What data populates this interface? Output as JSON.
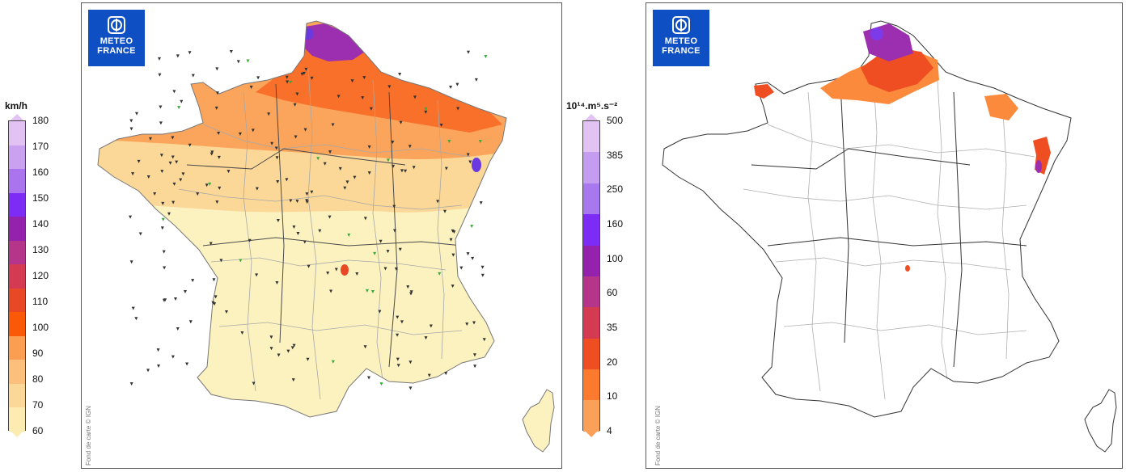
{
  "left_scale": {
    "title": "km/h",
    "ticks": [
      "180",
      "170",
      "160",
      "150",
      "140",
      "130",
      "120",
      "110",
      "100",
      "90",
      "80",
      "70",
      "60"
    ],
    "colors": [
      "#e2c2f2",
      "#caa0f0",
      "#aa74ee",
      "#7c2cf4",
      "#9422ac",
      "#b5358a",
      "#d43a52",
      "#e84826",
      "#fa5a08",
      "#fb9e52",
      "#fcc07c",
      "#fbd898",
      "#fcecb2"
    ]
  },
  "right_scale": {
    "title": "10¹⁴.m⁵.s⁻²",
    "ticks": [
      "500",
      "385",
      "250",
      "160",
      "100",
      "60",
      "35",
      "20",
      "10",
      "4"
    ],
    "colors": [
      "#e2c2f2",
      "#c49cf0",
      "#a878ee",
      "#7c2cf4",
      "#9422ac",
      "#b5358a",
      "#d43a52",
      "#ee4e22",
      "#fb7a2e",
      "#fba058"
    ]
  },
  "left_map": {
    "logo_line1": "METEO",
    "logo_line2": "FRANCE",
    "credit": "Fond de carte © IGN",
    "colors": {
      "base": "#fcf2c0",
      "mid": "#fbd898",
      "north": "#fba55c",
      "strong": "#f8702a",
      "violet": "#9b2fb0",
      "indigo": "#6a3ae0"
    }
  },
  "right_map": {
    "logo_line1": "METEO",
    "logo_line2": "FRANCE",
    "credit": "Fond de carte © IGN",
    "colors": {
      "orange": "#fb8a3c",
      "red": "#ee4e22",
      "violet": "#9b2fb0",
      "indigo": "#7c3ae8",
      "light": "#fba058"
    }
  }
}
